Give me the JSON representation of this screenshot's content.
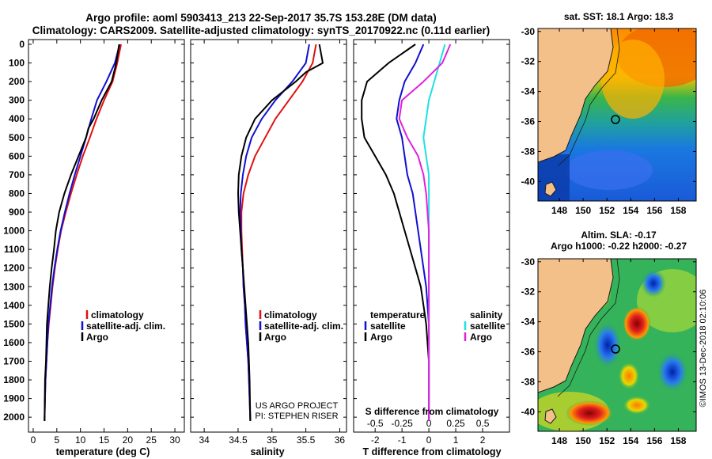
{
  "header": {
    "line1": "Argo profile: aoml 5903413_213 22-Sep-2017 35.7S 153.28E (DM data)",
    "line2": "Climatology: CARS2009. Satellite-adjusted climatology: synTS_20170922.nc (0.11d earlier)"
  },
  "colors": {
    "argo": "#000000",
    "climatology": "#e01010",
    "satellite": "#1010d0",
    "sat_salinity": "#20e0e0",
    "argo_salinity": "#e020e0"
  },
  "depth_ticks": [
    "0",
    "100",
    "200",
    "300",
    "400",
    "500",
    "600",
    "700",
    "800",
    "900",
    "1000",
    "1100",
    "1200",
    "1300",
    "1400",
    "1500",
    "1600",
    "1700",
    "1800",
    "1900",
    "2000"
  ],
  "chart_data": [
    {
      "type": "line",
      "xlabel": "temperature (deg C)",
      "xlim": [
        -1,
        32
      ],
      "ylim": [
        0,
        2080
      ],
      "ylim_reversed": true,
      "xticks": [
        "0",
        "5",
        "10",
        "15",
        "20",
        "25",
        "30"
      ],
      "legend": [
        "climatology",
        "satellite-adj. clim.",
        "Argo"
      ],
      "legend_position": "bottom-center",
      "series": [
        {
          "name": "climatology",
          "color": "#e01010",
          "x": [
            18.6,
            17.8,
            16.8,
            15.0,
            13.4,
            12.0,
            10.5,
            9.2,
            8.0,
            6.9,
            5.9,
            5.2,
            4.6,
            4.1,
            3.7,
            3.3,
            3.0,
            2.8,
            2.6,
            2.5,
            2.4
          ],
          "y": [
            0,
            100,
            200,
            300,
            400,
            500,
            600,
            700,
            800,
            900,
            1000,
            1100,
            1200,
            1300,
            1400,
            1500,
            1600,
            1700,
            1800,
            1900,
            2020
          ]
        },
        {
          "name": "satellite-adj. clim.",
          "color": "#1010d0",
          "x": [
            18.3,
            17.3,
            15.5,
            13.5,
            12.3,
            11.2,
            10.0,
            8.8,
            7.7,
            6.7,
            5.8,
            5.1,
            4.5,
            4.0,
            3.6,
            3.2,
            3.0,
            2.8,
            2.6,
            2.5,
            2.4
          ],
          "y": [
            0,
            100,
            200,
            300,
            400,
            500,
            600,
            700,
            800,
            900,
            1000,
            1100,
            1200,
            1300,
            1400,
            1500,
            1600,
            1700,
            1800,
            1900,
            2020
          ]
        },
        {
          "name": "Argo",
          "color": "#000000",
          "x": [
            18.2,
            17.6,
            16.6,
            14.5,
            12.8,
            11.7,
            11.2,
            9.6,
            8.0,
            6.6,
            5.5,
            4.8,
            4.4,
            3.9,
            3.5,
            3.2,
            2.9,
            2.8,
            2.7,
            2.5,
            2.4
          ],
          "y": [
            0,
            100,
            200,
            300,
            400,
            450,
            500,
            600,
            700,
            800,
            900,
            1000,
            1100,
            1200,
            1300,
            1400,
            1500,
            1600,
            1700,
            1800,
            2020
          ]
        }
      ]
    },
    {
      "type": "line",
      "xlabel": "salinity",
      "xlim": [
        33.8,
        36.1
      ],
      "ylim": [
        0,
        2080
      ],
      "ylim_reversed": true,
      "xticks": [
        "34",
        "34.5",
        "35",
        "35.5",
        "36"
      ],
      "legend": [
        "climatology",
        "satellite-adj. clim.",
        "Argo"
      ],
      "legend_position": "bottom-center",
      "annotation": [
        "US ARGO PROJECT",
        "PI: STEPHEN RISER"
      ],
      "series": [
        {
          "name": "climatology",
          "color": "#e01010",
          "x": [
            35.65,
            35.6,
            35.45,
            35.25,
            35.05,
            34.9,
            34.75,
            34.65,
            34.58,
            34.55,
            34.55,
            34.56,
            34.57,
            34.58,
            34.6,
            34.61,
            34.63,
            34.65,
            34.66,
            34.67,
            34.68
          ],
          "y": [
            0,
            100,
            200,
            300,
            400,
            500,
            600,
            700,
            800,
            900,
            1000,
            1100,
            1200,
            1300,
            1400,
            1500,
            1600,
            1700,
            1800,
            1900,
            2020
          ]
        },
        {
          "name": "satellite-adj. clim.",
          "color": "#1010d0",
          "x": [
            35.55,
            35.5,
            35.3,
            35.05,
            34.85,
            34.7,
            34.62,
            34.57,
            34.54,
            34.53,
            34.54,
            34.55,
            34.57,
            34.58,
            34.6,
            34.61,
            34.63,
            34.65,
            34.66,
            34.67,
            34.68
          ],
          "y": [
            0,
            100,
            200,
            300,
            400,
            500,
            600,
            700,
            800,
            900,
            1000,
            1100,
            1200,
            1300,
            1400,
            1500,
            1600,
            1700,
            1800,
            1900,
            2020
          ]
        },
        {
          "name": "Argo",
          "color": "#000000",
          "x": [
            35.7,
            35.75,
            35.5,
            35.35,
            35.0,
            34.75,
            34.62,
            34.55,
            34.51,
            34.5,
            34.51,
            34.53,
            34.55,
            34.57,
            34.59,
            34.61,
            34.63,
            34.65,
            34.66,
            34.67,
            34.68
          ],
          "y": [
            0,
            100,
            150,
            200,
            300,
            400,
            500,
            600,
            700,
            800,
            900,
            1000,
            1100,
            1200,
            1300,
            1400,
            1500,
            1600,
            1700,
            1800,
            2020
          ]
        }
      ]
    },
    {
      "type": "line",
      "xlabel": "T difference from climatology",
      "xlabel2": "S difference from climatology",
      "xlim": [
        -2.8,
        3.0
      ],
      "ylim": [
        0,
        2080
      ],
      "ylim_reversed": true,
      "xticks": [
        "-2",
        "-1",
        "0",
        "1",
        "2"
      ],
      "xticks2": [
        "-0.5",
        "-0.25",
        "0",
        "0.25",
        "0.5"
      ],
      "legend_left_title": "temperature",
      "legend_left": [
        "satellite",
        "Argo"
      ],
      "legend_right_title": "salinity",
      "legend_right": [
        "satellite",
        "Argo"
      ],
      "legend_position": "bottom",
      "series": [
        {
          "name": "T satellite",
          "color": "#1010d0",
          "x": [
            -0.2,
            -0.5,
            -0.9,
            -1.1,
            -1.2,
            -1.0,
            -0.9,
            -0.8,
            -0.6,
            -0.5,
            -0.4,
            -0.3,
            -0.2,
            -0.1,
            -0.05,
            0.0,
            0.0,
            0.0,
            0.0
          ],
          "y": [
            0,
            100,
            200,
            300,
            400,
            500,
            600,
            700,
            800,
            900,
            1000,
            1100,
            1200,
            1300,
            1400,
            1500,
            1700,
            1900,
            2020
          ]
        },
        {
          "name": "T Argo",
          "color": "#000000",
          "x": [
            -0.5,
            -1.5,
            -2.3,
            -2.5,
            -2.5,
            -2.4,
            -2.0,
            -1.6,
            -1.3,
            -1.1,
            -0.9,
            -0.7,
            -0.5,
            -0.3,
            -0.2,
            -0.1,
            0.0,
            0.0,
            0.0
          ],
          "y": [
            0,
            100,
            200,
            300,
            400,
            500,
            600,
            700,
            800,
            900,
            1000,
            1100,
            1200,
            1300,
            1400,
            1500,
            1700,
            1900,
            2020
          ]
        },
        {
          "name": "S satellite",
          "color": "#20e0e0",
          "x": [
            0.6,
            0.4,
            0.2,
            0.0,
            -0.2,
            -0.1,
            0.0,
            0.0,
            0.0,
            0.0,
            0.0,
            0.0,
            0.0,
            0.0
          ],
          "y": [
            0,
            100,
            200,
            300,
            500,
            600,
            700,
            800,
            1000,
            1200,
            1400,
            1600,
            1800,
            2020
          ]
        },
        {
          "name": "S Argo",
          "color": "#e020e0",
          "x": [
            0.8,
            0.5,
            -0.2,
            -1.0,
            -1.1,
            -0.8,
            -0.4,
            -0.2,
            -0.1,
            0.0,
            0.0,
            0.0,
            0.0,
            0.0
          ],
          "y": [
            0,
            100,
            200,
            300,
            400,
            500,
            600,
            700,
            800,
            1000,
            1200,
            1400,
            1600,
            2020
          ]
        }
      ]
    }
  ],
  "maps": {
    "sst": {
      "title": "sat. SST: 18.1 Argo: 18.3",
      "lat_labels": [
        "-30",
        "-32",
        "-34",
        "-36",
        "-38",
        "-40"
      ],
      "lon_labels": [
        "148",
        "150",
        "152",
        "154",
        "156",
        "158"
      ]
    },
    "sla": {
      "title1": "Altim. SLA: -0.17",
      "title2": "Argo h1000: -0.22 h2000: -0.27",
      "lat_labels": [
        "-30",
        "-32",
        "-34",
        "-36",
        "-38",
        "-40"
      ],
      "lon_labels": [
        "148",
        "150",
        "152",
        "154",
        "156",
        "158"
      ]
    }
  },
  "watermark": "©IMOS 13-Dec-2018 02:10:06"
}
